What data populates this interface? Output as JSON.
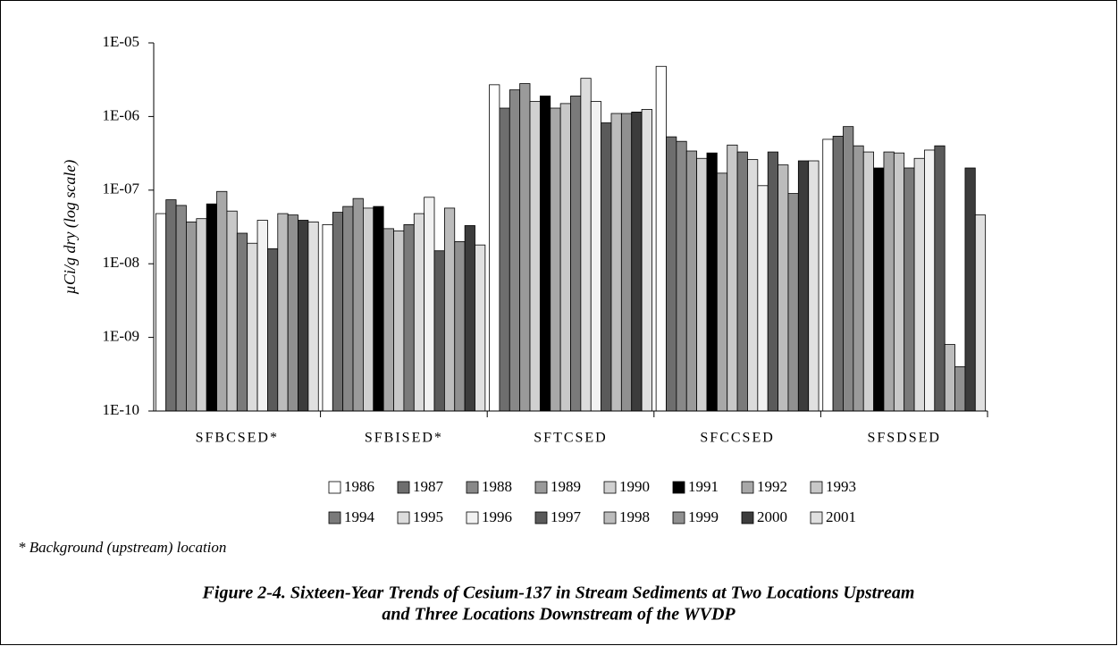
{
  "chart_data": {
    "type": "bar",
    "ylabel": "µCi/g dry (log scale)",
    "log_scale": true,
    "grid": false,
    "legend": "bottom",
    "footnote": "* Background (upstream) location",
    "caption_lines": [
      "Figure 2-4. Sixteen-Year Trends of Cesium-137 in Stream Sediments at Two Locations Upstream",
      "and Three Locations Downstream of the WVDP"
    ],
    "categories": [
      "SFBCSED*",
      "SFBISED*",
      "SFTCSED",
      "SFCCSED",
      "SFSDSED"
    ],
    "ylim": [
      1e-10,
      1e-05
    ],
    "yticks": [
      {
        "value": 1e-10,
        "label": "1E-10"
      },
      {
        "value": 1e-09,
        "label": "1E-09"
      },
      {
        "value": 1e-08,
        "label": "1E-08"
      },
      {
        "value": 1e-07,
        "label": "1E-07"
      },
      {
        "value": 1e-06,
        "label": "1E-06"
      },
      {
        "value": 1e-05,
        "label": "1E-05"
      }
    ],
    "series": [
      {
        "name": "1986",
        "color": "#ffffff",
        "values": [
          4.8e-08,
          3.4e-08,
          2.7e-06,
          4.8e-06,
          4.9e-07
        ]
      },
      {
        "name": "1987",
        "color": "#6e6e6e",
        "values": [
          7.4e-08,
          5e-08,
          1.3e-06,
          5.3e-07,
          5.4e-07
        ]
      },
      {
        "name": "1988",
        "color": "#888888",
        "values": [
          6.2e-08,
          6e-08,
          2.3e-06,
          4.6e-07,
          7.3e-07
        ]
      },
      {
        "name": "1989",
        "color": "#9a9a9a",
        "values": [
          3.7e-08,
          7.7e-08,
          2.8e-06,
          3.4e-07,
          4e-07
        ]
      },
      {
        "name": "1990",
        "color": "#d0d0d0",
        "values": [
          4.1e-08,
          5.7e-08,
          1.6e-06,
          2.7e-07,
          3.3e-07
        ]
      },
      {
        "name": "1991",
        "color": "#000000",
        "values": [
          6.5e-08,
          6e-08,
          1.9e-06,
          3.2e-07,
          2e-07
        ]
      },
      {
        "name": "1992",
        "color": "#a8a8a8",
        "values": [
          9.6e-08,
          3e-08,
          1.3e-06,
          1.7e-07,
          3.3e-07
        ]
      },
      {
        "name": "1993",
        "color": "#c8c8c8",
        "values": [
          5.2e-08,
          2.8e-08,
          1.5e-06,
          4.1e-07,
          3.2e-07
        ]
      },
      {
        "name": "1994",
        "color": "#7a7a7a",
        "values": [
          2.6e-08,
          3.4e-08,
          1.9e-06,
          3.3e-07,
          2e-07
        ]
      },
      {
        "name": "1995",
        "color": "#dcdcdc",
        "values": [
          1.9e-08,
          4.8e-08,
          3.3e-06,
          2.6e-07,
          2.7e-07
        ]
      },
      {
        "name": "1996",
        "color": "#f2f2f2",
        "values": [
          3.9e-08,
          8e-08,
          1.6e-06,
          1.15e-07,
          3.5e-07
        ]
      },
      {
        "name": "1997",
        "color": "#5a5a5a",
        "values": [
          1.6e-08,
          1.5e-08,
          8.2e-07,
          3.3e-07,
          4e-07
        ]
      },
      {
        "name": "1998",
        "color": "#bcbcbc",
        "values": [
          4.8e-08,
          5.7e-08,
          1.1e-06,
          2.2e-07,
          8e-10
        ]
      },
      {
        "name": "1999",
        "color": "#909090",
        "values": [
          4.6e-08,
          2e-08,
          1.1e-06,
          9e-08,
          4e-10
        ]
      },
      {
        "name": "2000",
        "color": "#3c3c3c",
        "values": [
          3.9e-08,
          3.3e-08,
          1.15e-06,
          2.5e-07,
          2e-07
        ]
      },
      {
        "name": "2001",
        "color": "#e0e0e0",
        "values": [
          3.7e-08,
          1.8e-08,
          1.25e-06,
          2.5e-07,
          4.6e-08
        ]
      }
    ]
  }
}
